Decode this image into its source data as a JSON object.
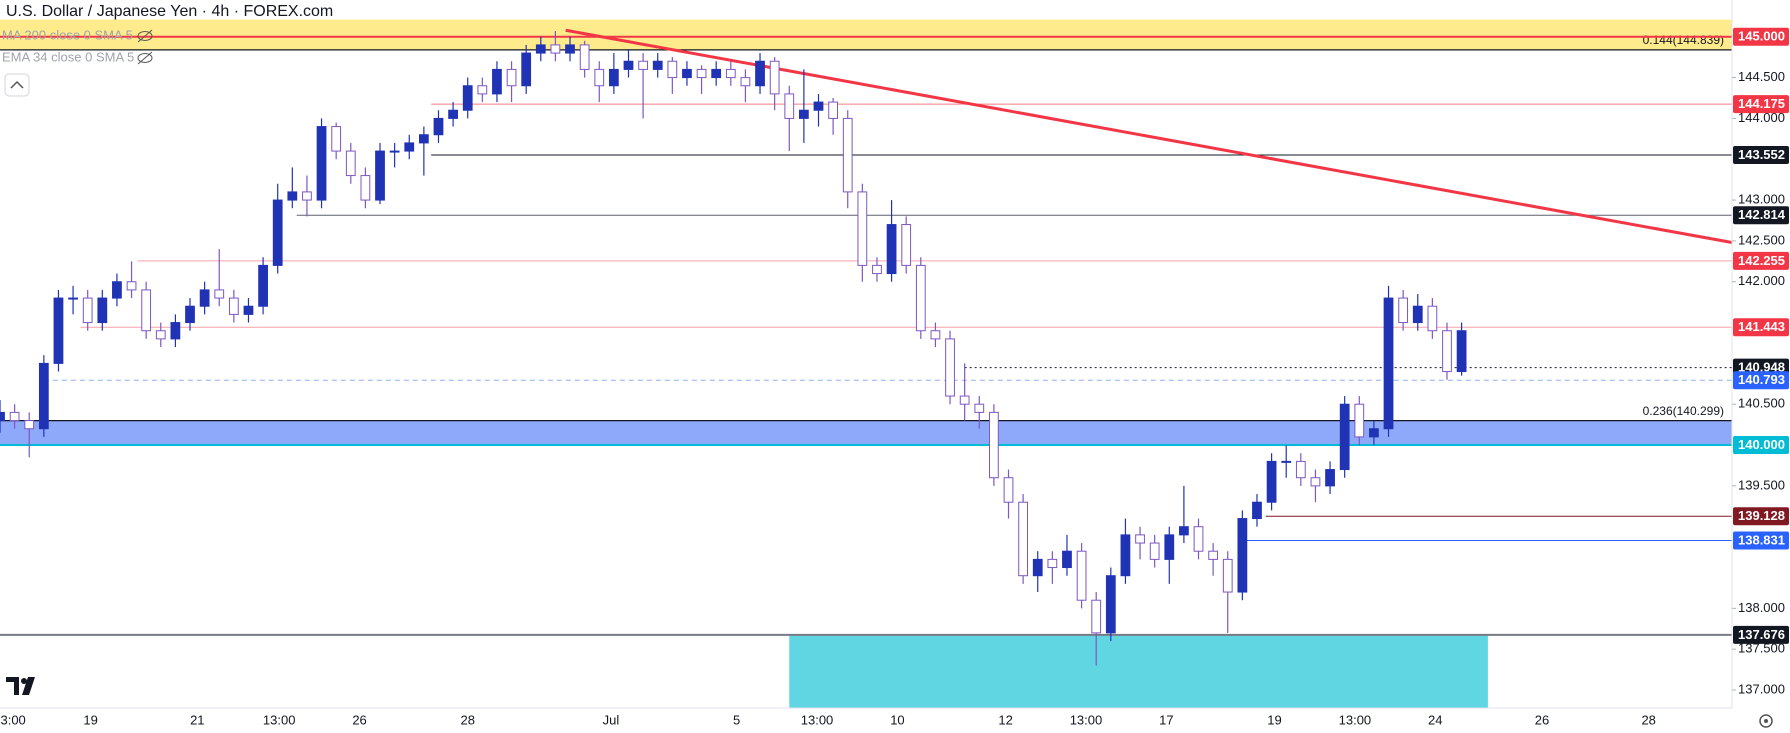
{
  "chart_data": {
    "type": "candlestick",
    "title": "U.S. Dollar / Japanese Yen · 4h · FOREX.com",
    "indicators": [
      "MA 200 close 0 SMA 5",
      "EMA 34 close 0 SMA 5"
    ],
    "up_color": "#2133b5",
    "down_color": "#7e57c2",
    "xlim": [
      0,
      118.5
    ],
    "xticks": [
      {
        "value": 0.9,
        "label": "3:00"
      },
      {
        "value": 6.2,
        "label": "19"
      },
      {
        "value": 13.5,
        "label": "21"
      },
      {
        "value": 19.1,
        "label": "13:00"
      },
      {
        "value": 24.6,
        "label": "26"
      },
      {
        "value": 32.0,
        "label": "28"
      },
      {
        "value": 41.8,
        "label": "Jul"
      },
      {
        "value": 50.4,
        "label": "5"
      },
      {
        "value": 55.9,
        "label": "13:00"
      },
      {
        "value": 61.4,
        "label": "10"
      },
      {
        "value": 68.8,
        "label": "12"
      },
      {
        "value": 74.3,
        "label": "13:00"
      },
      {
        "value": 79.8,
        "label": "17"
      },
      {
        "value": 87.2,
        "label": "19"
      },
      {
        "value": 92.7,
        "label": "13:00"
      },
      {
        "value": 98.2,
        "label": "24"
      },
      {
        "value": 105.5,
        "label": "26"
      },
      {
        "value": 112.8,
        "label": "28"
      }
    ],
    "ylim": [
      136.78,
      145.45
    ],
    "yticks": [
      {
        "value": 144.5,
        "label": "144.500"
      },
      {
        "value": 144,
        "label": "144.000"
      },
      {
        "value": 143,
        "label": "143.000"
      },
      {
        "value": 142.5,
        "label": "142.500"
      },
      {
        "value": 142,
        "label": "142.000"
      },
      {
        "value": 140.5,
        "label": "140.500"
      },
      {
        "value": 139.5,
        "label": "139.500"
      },
      {
        "value": 138,
        "label": "138.000"
      },
      {
        "value": 137.5,
        "label": "137.500"
      },
      {
        "value": 137,
        "label": "137.000"
      }
    ],
    "grid": false,
    "ohlc": [
      [
        140.3,
        140.55,
        140.15,
        140.4
      ],
      [
        140.4,
        140.5,
        140.2,
        140.3
      ],
      [
        140.3,
        140.4,
        139.85,
        140.2
      ],
      [
        140.2,
        141.1,
        140.1,
        141.0
      ],
      [
        141.0,
        141.9,
        140.9,
        141.8
      ],
      [
        141.8,
        141.95,
        141.6,
        141.8
      ],
      [
        141.8,
        141.9,
        141.4,
        141.5
      ],
      [
        141.5,
        141.9,
        141.4,
        141.8
      ],
      [
        141.8,
        142.1,
        141.7,
        142.0
      ],
      [
        142.0,
        142.25,
        141.8,
        141.9
      ],
      [
        141.9,
        142.0,
        141.3,
        141.4
      ],
      [
        141.4,
        141.5,
        141.2,
        141.3
      ],
      [
        141.3,
        141.6,
        141.2,
        141.5
      ],
      [
        141.5,
        141.8,
        141.4,
        141.7
      ],
      [
        141.7,
        142.0,
        141.6,
        141.9
      ],
      [
        141.9,
        142.4,
        141.7,
        141.8
      ],
      [
        141.8,
        141.9,
        141.5,
        141.6
      ],
      [
        141.6,
        141.8,
        141.5,
        141.7
      ],
      [
        141.7,
        142.3,
        141.6,
        142.2
      ],
      [
        142.2,
        143.2,
        142.1,
        143.0
      ],
      [
        143.0,
        143.4,
        142.9,
        143.1
      ],
      [
        143.1,
        143.3,
        142.8,
        143.0
      ],
      [
        143.0,
        144.0,
        142.9,
        143.9
      ],
      [
        143.9,
        143.95,
        143.5,
        143.6
      ],
      [
        143.6,
        143.7,
        143.2,
        143.3
      ],
      [
        143.3,
        143.4,
        142.9,
        143.0
      ],
      [
        143.0,
        143.7,
        142.95,
        143.6
      ],
      [
        143.6,
        143.7,
        143.4,
        143.6
      ],
      [
        143.6,
        143.8,
        143.5,
        143.7
      ],
      [
        143.7,
        143.9,
        143.3,
        143.8
      ],
      [
        143.8,
        144.1,
        143.7,
        144.0
      ],
      [
        144.0,
        144.2,
        143.9,
        144.1
      ],
      [
        144.1,
        144.5,
        144.0,
        144.4
      ],
      [
        144.4,
        144.5,
        144.2,
        144.3
      ],
      [
        144.3,
        144.7,
        144.2,
        144.6
      ],
      [
        144.6,
        144.7,
        144.2,
        144.4
      ],
      [
        144.4,
        144.9,
        144.3,
        144.8
      ],
      [
        144.8,
        145.0,
        144.7,
        144.9
      ],
      [
        144.9,
        145.07,
        144.7,
        144.8
      ],
      [
        144.8,
        145.0,
        144.7,
        144.9
      ],
      [
        144.9,
        144.95,
        144.5,
        144.6
      ],
      [
        144.6,
        144.7,
        144.2,
        144.4
      ],
      [
        144.4,
        144.8,
        144.3,
        144.6
      ],
      [
        144.6,
        144.85,
        144.5,
        144.7
      ],
      [
        144.7,
        144.8,
        144.0,
        144.6
      ],
      [
        144.6,
        144.8,
        144.5,
        144.7
      ],
      [
        144.7,
        144.75,
        144.3,
        144.5
      ],
      [
        144.5,
        144.7,
        144.4,
        144.6
      ],
      [
        144.6,
        144.65,
        144.3,
        144.5
      ],
      [
        144.5,
        144.7,
        144.4,
        144.6
      ],
      [
        144.6,
        144.7,
        144.4,
        144.5
      ],
      [
        144.5,
        144.6,
        144.2,
        144.4
      ],
      [
        144.4,
        144.8,
        144.3,
        144.7
      ],
      [
        144.7,
        144.75,
        144.1,
        144.3
      ],
      [
        144.3,
        144.4,
        143.6,
        144.0
      ],
      [
        144.0,
        144.6,
        143.7,
        144.1
      ],
      [
        144.1,
        144.3,
        143.9,
        144.2
      ],
      [
        144.2,
        144.25,
        143.8,
        144.0
      ],
      [
        144.0,
        144.1,
        142.9,
        143.1
      ],
      [
        143.1,
        143.2,
        142.0,
        142.2
      ],
      [
        142.2,
        142.3,
        142.0,
        142.1
      ],
      [
        142.1,
        143.0,
        142.0,
        142.7
      ],
      [
        142.7,
        142.8,
        142.1,
        142.2
      ],
      [
        142.2,
        142.3,
        141.3,
        141.4
      ],
      [
        141.4,
        141.5,
        141.2,
        141.3
      ],
      [
        141.3,
        141.4,
        140.5,
        140.6
      ],
      [
        140.6,
        141.0,
        140.3,
        140.5
      ],
      [
        140.5,
        140.6,
        140.2,
        140.4
      ],
      [
        140.4,
        140.5,
        139.5,
        139.6
      ],
      [
        139.6,
        139.7,
        139.1,
        139.3
      ],
      [
        139.3,
        139.4,
        138.3,
        138.4
      ],
      [
        138.4,
        138.7,
        138.2,
        138.6
      ],
      [
        138.6,
        138.7,
        138.3,
        138.5
      ],
      [
        138.5,
        138.9,
        138.4,
        138.7
      ],
      [
        138.7,
        138.8,
        138.0,
        138.1
      ],
      [
        138.1,
        138.2,
        137.3,
        137.7
      ],
      [
        137.7,
        138.5,
        137.6,
        138.4
      ],
      [
        138.4,
        139.1,
        138.3,
        138.9
      ],
      [
        138.9,
        139.0,
        138.6,
        138.8
      ],
      [
        138.8,
        138.9,
        138.5,
        138.6
      ],
      [
        138.6,
        139.0,
        138.3,
        138.9
      ],
      [
        138.9,
        139.5,
        138.8,
        139.0
      ],
      [
        139.0,
        139.1,
        138.6,
        138.7
      ],
      [
        138.7,
        138.8,
        138.4,
        138.6
      ],
      [
        138.6,
        138.7,
        137.7,
        138.2
      ],
      [
        138.2,
        139.2,
        138.1,
        139.1
      ],
      [
        139.1,
        139.4,
        139.0,
        139.3
      ],
      [
        139.3,
        139.9,
        139.2,
        139.8
      ],
      [
        139.8,
        140.0,
        139.6,
        139.8
      ],
      [
        139.8,
        139.9,
        139.5,
        139.6
      ],
      [
        139.6,
        139.7,
        139.3,
        139.5
      ],
      [
        139.5,
        139.8,
        139.4,
        139.7
      ],
      [
        139.7,
        140.6,
        139.6,
        140.5
      ],
      [
        140.5,
        140.6,
        140.0,
        140.1
      ],
      [
        140.1,
        140.3,
        140.0,
        140.2
      ],
      [
        140.2,
        141.95,
        140.1,
        141.8
      ],
      [
        141.8,
        141.9,
        141.4,
        141.5
      ],
      [
        141.5,
        141.85,
        141.4,
        141.7
      ],
      [
        141.7,
        141.8,
        141.3,
        141.4
      ],
      [
        141.4,
        141.5,
        140.8,
        140.9
      ],
      [
        140.9,
        141.5,
        140.85,
        141.4
      ]
    ],
    "zones": [
      {
        "from": 144.839,
        "to": 145.21,
        "color": "#fdeb8c"
      },
      {
        "from": 140.0,
        "to": 140.299,
        "color": "#8fa9fa"
      },
      {
        "from": 136.78,
        "to": 137.676,
        "x_from": 54.0,
        "x_to": 101.8,
        "color": "#5fd6e2"
      }
    ],
    "fibs": [
      {
        "value": 144.839,
        "text": "0.144(144.839)"
      },
      {
        "value": 140.299,
        "text": "0.236(140.299)"
      }
    ],
    "levels": [
      {
        "value": 145,
        "label": "145.000",
        "color": "#f23645",
        "line_color": "#f23645",
        "width": 2,
        "style": "solid",
        "x_from": 0
      },
      {
        "value": 144.175,
        "label": "144.175",
        "color": "#f23645",
        "line_color": "#f77c80",
        "width": 1,
        "style": "solid",
        "x_from": 29.5
      },
      {
        "value": 143.552,
        "label": "143.552",
        "color": "#131722",
        "line_color": "#131722",
        "width": 1,
        "style": "solid",
        "x_from": 29.5
      },
      {
        "value": 142.814,
        "label": "142.814",
        "color": "#131722",
        "line_color": "#5d606b",
        "width": 1,
        "style": "solid",
        "x_from": 20.3
      },
      {
        "value": 142.255,
        "label": "142.255",
        "color": "#f23645",
        "line_color": "#f7a1a8",
        "width": 1,
        "style": "solid",
        "x_from": 9.4
      },
      {
        "value": 141.443,
        "label": "141.443",
        "color": "#f23645",
        "line_color": "#f7a1a8",
        "width": 1,
        "style": "solid",
        "x_from": 5.5
      },
      {
        "value": 140.948,
        "label": "140.948",
        "color": "#131722",
        "line_color": "#131722",
        "width": 1,
        "style": "dotted",
        "x_from": 66.0
      },
      {
        "value": 140.793,
        "label": "140.793",
        "color": "#2962ff",
        "line_color": "#90b4f8",
        "width": 1,
        "style": "dashed",
        "x_from": 3.0
      },
      {
        "value": 140.0,
        "label": "140.000",
        "color": "#00bcd4",
        "line_color": "#00bcd4",
        "width": 2,
        "style": "solid",
        "x_from": 0
      },
      {
        "value": 139.128,
        "label": "139.128",
        "color": "#801922",
        "line_color": "#801922",
        "width": 1,
        "style": "solid",
        "x_from": 86.6
      },
      {
        "value": 138.831,
        "label": "138.831",
        "color": "#2962ff",
        "line_color": "#2962ff",
        "width": 1,
        "style": "solid",
        "x_from": 85.2
      },
      {
        "value": 137.676,
        "label": "137.676",
        "color": "#131722",
        "line_color": "#787b86",
        "width": 2,
        "style": "solid",
        "x_from": 0
      }
    ],
    "trendline": {
      "x": [
        38.7,
        118.5
      ],
      "y": [
        145.08,
        142.48
      ],
      "color": "#f23645"
    }
  }
}
